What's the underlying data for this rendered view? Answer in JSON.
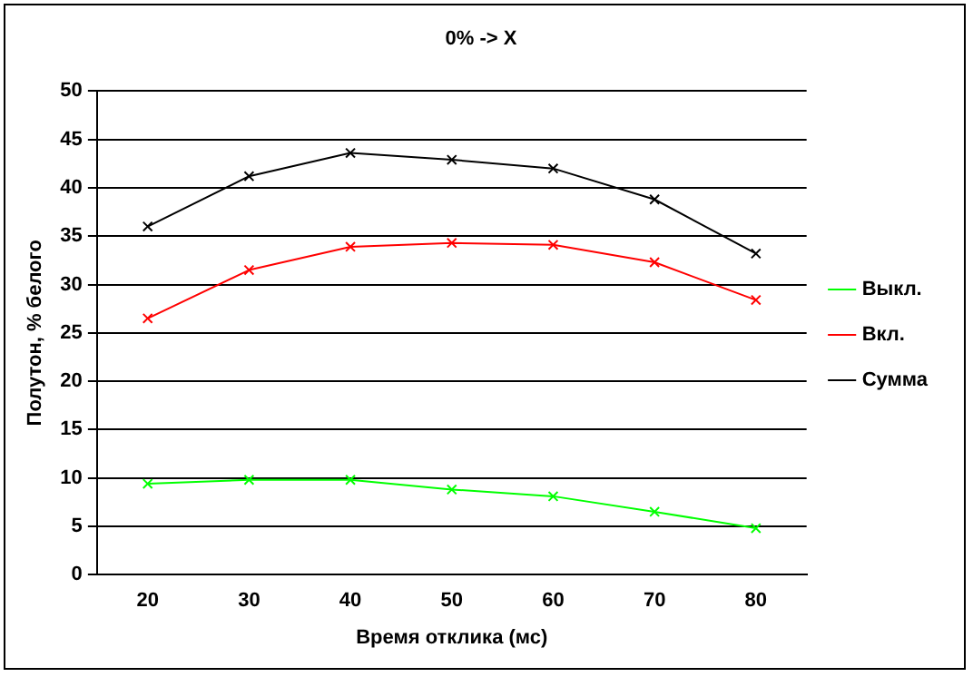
{
  "chart_data": {
    "type": "line",
    "title": "0% -> X",
    "xlabel": "Время отклика (мс)",
    "ylabel": "Полутон, % белого",
    "categories": [
      "20",
      "30",
      "40",
      "50",
      "60",
      "70",
      "80"
    ],
    "series": [
      {
        "name": "Выкл.",
        "color": "#00ff00",
        "values": [
          9.4,
          9.8,
          9.8,
          8.8,
          8.1,
          6.5,
          4.8
        ]
      },
      {
        "name": "Вкл.",
        "color": "#ff0000",
        "values": [
          26.5,
          31.5,
          33.9,
          34.3,
          34.1,
          32.3,
          28.4
        ]
      },
      {
        "name": "Сумма",
        "color": "#000000",
        "values": [
          36,
          41.2,
          43.6,
          42.9,
          42,
          38.8,
          33.2
        ]
      }
    ],
    "ylim": [
      0,
      50
    ],
    "yticks": [
      0,
      5,
      10,
      15,
      20,
      25,
      30,
      35,
      40,
      45,
      50
    ],
    "grid": "y",
    "legend": "right",
    "marker": "cross",
    "line_style": "solid"
  }
}
